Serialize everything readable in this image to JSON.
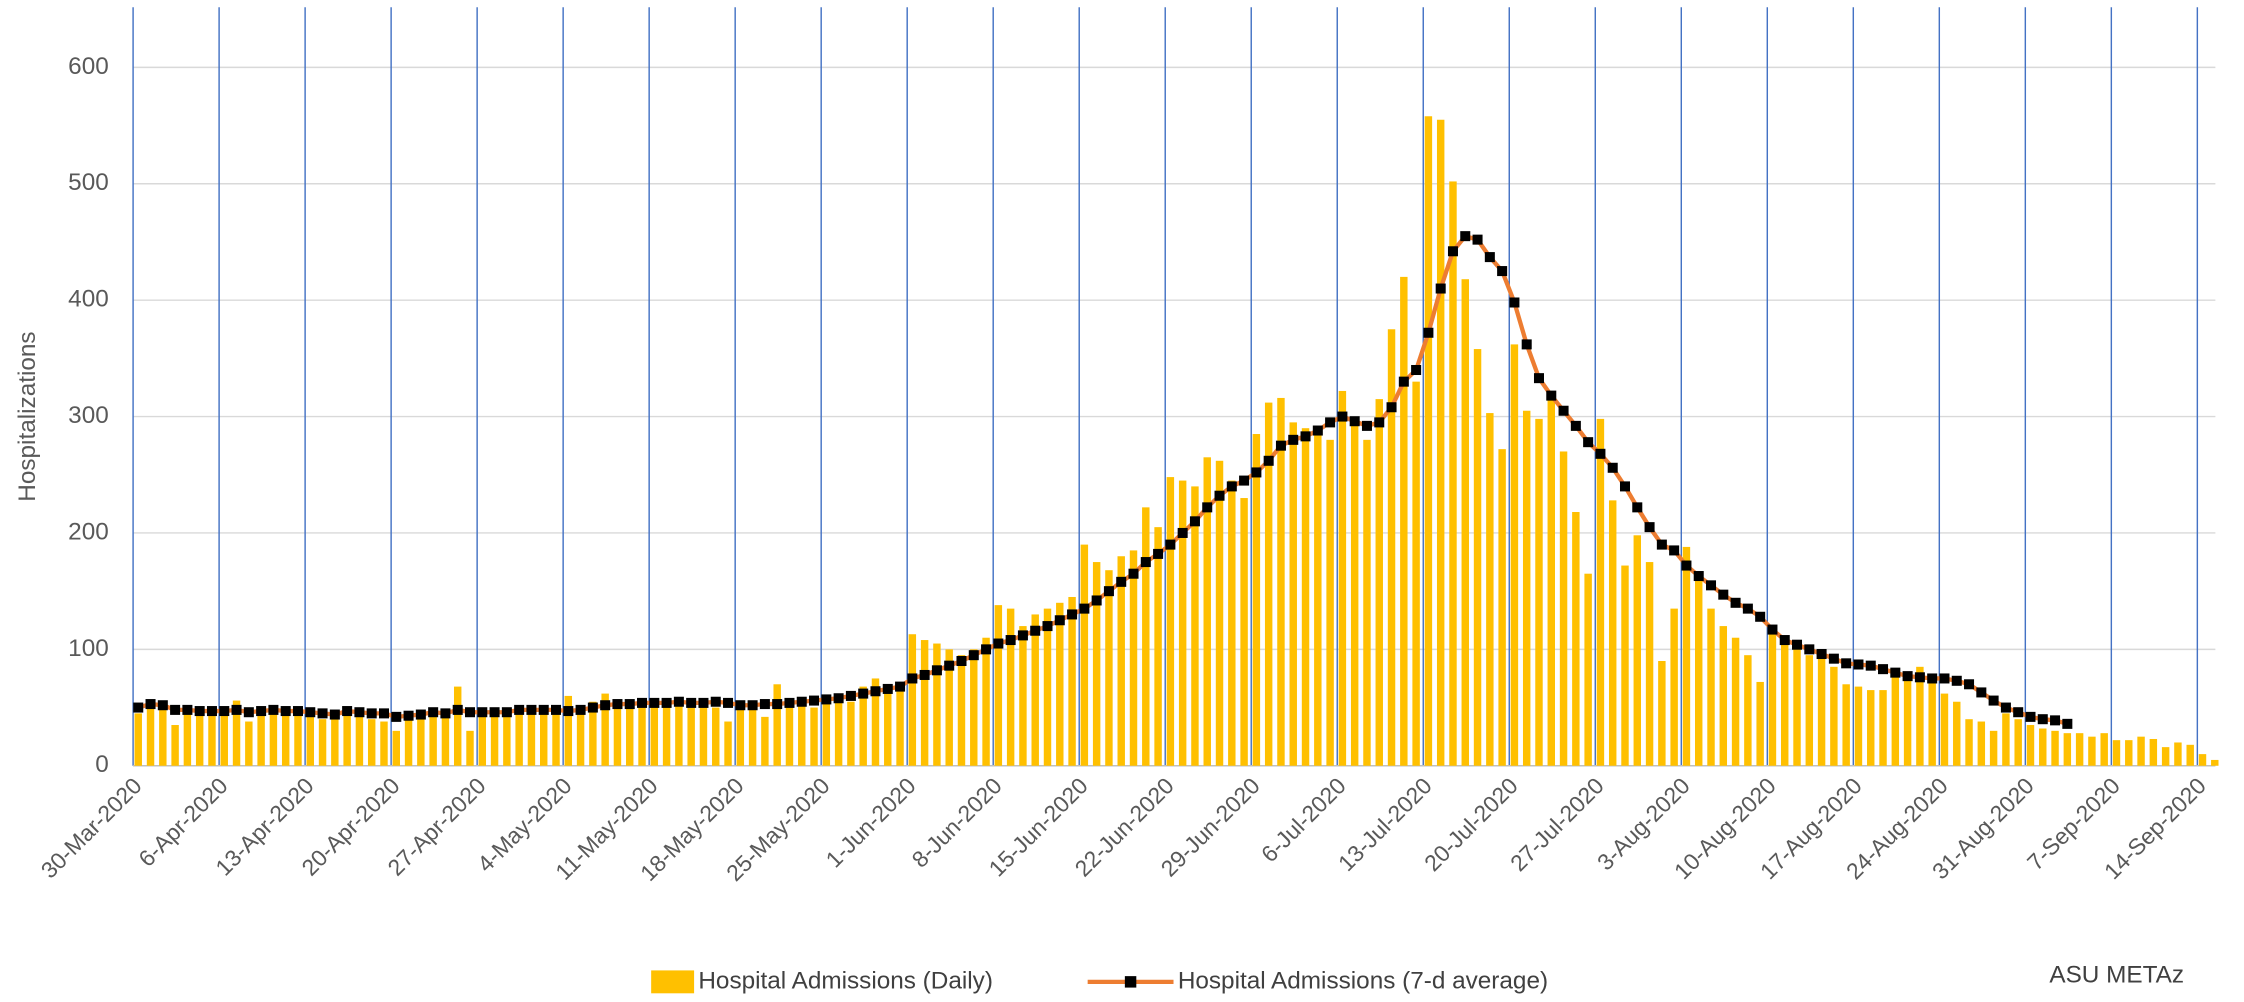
{
  "chart_data": {
    "type": "bar_line",
    "y_label": "Hospitalizations",
    "annotation": "ASU METAz",
    "ylim": [
      0,
      600
    ],
    "yticks": [
      0,
      100,
      200,
      300,
      400,
      500,
      600
    ],
    "grid": true,
    "x_grid_color": "#4472C4",
    "marker_color": "#000000",
    "categories": [
      "30-Mar-2020",
      null,
      null,
      null,
      null,
      null,
      null,
      "6-Apr-2020",
      null,
      null,
      null,
      null,
      null,
      null,
      "13-Apr-2020",
      null,
      null,
      null,
      null,
      null,
      null,
      "20-Apr-2020",
      null,
      null,
      null,
      null,
      null,
      null,
      "27-Apr-2020",
      null,
      null,
      null,
      null,
      null,
      null,
      "4-May-2020",
      null,
      null,
      null,
      null,
      null,
      null,
      "11-May-2020",
      null,
      null,
      null,
      null,
      null,
      null,
      "18-May-2020",
      null,
      null,
      null,
      null,
      null,
      null,
      "25-May-2020",
      null,
      null,
      null,
      null,
      null,
      null,
      "1-Jun-2020",
      null,
      null,
      null,
      null,
      null,
      null,
      "8-Jun-2020",
      null,
      null,
      null,
      null,
      null,
      null,
      "15-Jun-2020",
      null,
      null,
      null,
      null,
      null,
      null,
      "22-Jun-2020",
      null,
      null,
      null,
      null,
      null,
      null,
      "29-Jun-2020",
      null,
      null,
      null,
      null,
      null,
      null,
      "6-Jul-2020",
      null,
      null,
      null,
      null,
      null,
      null,
      "13-Jul-2020",
      null,
      null,
      null,
      null,
      null,
      null,
      "20-Jul-2020",
      null,
      null,
      null,
      null,
      null,
      null,
      "27-Jul-2020",
      null,
      null,
      null,
      null,
      null,
      null,
      "3-Aug-2020",
      null,
      null,
      null,
      null,
      null,
      null,
      "10-Aug-2020",
      null,
      null,
      null,
      null,
      null,
      null,
      "17-Aug-2020",
      null,
      null,
      null,
      null,
      null,
      null,
      "24-Aug-2020",
      null,
      null,
      null,
      null,
      null,
      null,
      "31-Aug-2020",
      null,
      null,
      null,
      null,
      null,
      null,
      "7-Sep-2020",
      null,
      null,
      null,
      null,
      null,
      null,
      "14-Sep-2020",
      null
    ],
    "series": [
      {
        "name": "Hospital Admissions (Daily)",
        "type": "bar",
        "color": "#FFC000",
        "values": [
          45,
          52,
          48,
          35,
          45,
          48,
          44,
          48,
          56,
          38,
          45,
          47,
          50,
          45,
          42,
          40,
          45,
          47,
          42,
          40,
          38,
          30,
          40,
          45,
          50,
          48,
          68,
          30,
          42,
          48,
          50,
          45,
          47,
          48,
          50,
          60,
          48,
          55,
          62,
          50,
          55,
          52,
          55,
          57,
          55,
          50,
          55,
          50,
          38,
          55,
          52,
          42,
          70,
          55,
          53,
          50,
          60,
          62,
          55,
          68,
          75,
          65,
          70,
          113,
          108,
          105,
          100,
          95,
          100,
          110,
          138,
          135,
          120,
          130,
          135,
          140,
          145,
          190,
          175,
          168,
          180,
          185,
          222,
          205,
          248,
          245,
          240,
          265,
          262,
          245,
          230,
          285,
          312,
          316,
          295,
          290,
          285,
          280,
          322,
          300,
          280,
          315,
          375,
          420,
          330,
          558,
          555,
          502,
          418,
          358,
          303,
          272,
          362,
          305,
          298,
          320,
          270,
          218,
          165,
          298,
          228,
          172,
          198,
          175,
          90,
          135,
          188,
          165,
          135,
          120,
          110,
          95,
          72,
          115,
          105,
          100,
          95,
          92,
          85,
          70,
          68,
          65,
          65,
          78,
          80,
          85,
          75,
          62,
          55,
          40,
          38,
          30,
          45,
          40,
          35,
          32,
          30,
          28,
          28,
          25,
          28,
          22,
          22,
          25,
          23,
          16,
          20,
          18,
          10,
          5
        ]
      },
      {
        "name": "Hospital Admissions (7-d average)",
        "type": "line",
        "color": "#ED7D31",
        "values": [
          50,
          53,
          52,
          48,
          48,
          47,
          47,
          47,
          48,
          46,
          47,
          48,
          47,
          47,
          46,
          45,
          44,
          47,
          46,
          45,
          45,
          42,
          43,
          44,
          46,
          45,
          48,
          46,
          46,
          46,
          46,
          48,
          48,
          48,
          48,
          47,
          48,
          50,
          52,
          53,
          53,
          54,
          54,
          54,
          55,
          54,
          54,
          55,
          54,
          52,
          52,
          53,
          53,
          54,
          55,
          56,
          57,
          58,
          60,
          62,
          64,
          66,
          68,
          75,
          78,
          82,
          86,
          90,
          95,
          100,
          105,
          108,
          112,
          116,
          120,
          125,
          130,
          135,
          142,
          150,
          158,
          165,
          175,
          182,
          190,
          200,
          210,
          222,
          232,
          240,
          245,
          252,
          262,
          275,
          280,
          283,
          288,
          295,
          300,
          296,
          292,
          295,
          308,
          330,
          340,
          372,
          410,
          442,
          455,
          452,
          437,
          425,
          398,
          362,
          333,
          318,
          305,
          292,
          278,
          268,
          256,
          240,
          222,
          205,
          190,
          185,
          172,
          163,
          155,
          147,
          140,
          135,
          128,
          117,
          108,
          104,
          100,
          96,
          92,
          88,
          87,
          86,
          83,
          80,
          77,
          76,
          75,
          75,
          73,
          70,
          63,
          56,
          50,
          46,
          42,
          40,
          39,
          36,
          null,
          null,
          null,
          null,
          null,
          null,
          null,
          null,
          null,
          null,
          null,
          null
        ]
      }
    ]
  }
}
